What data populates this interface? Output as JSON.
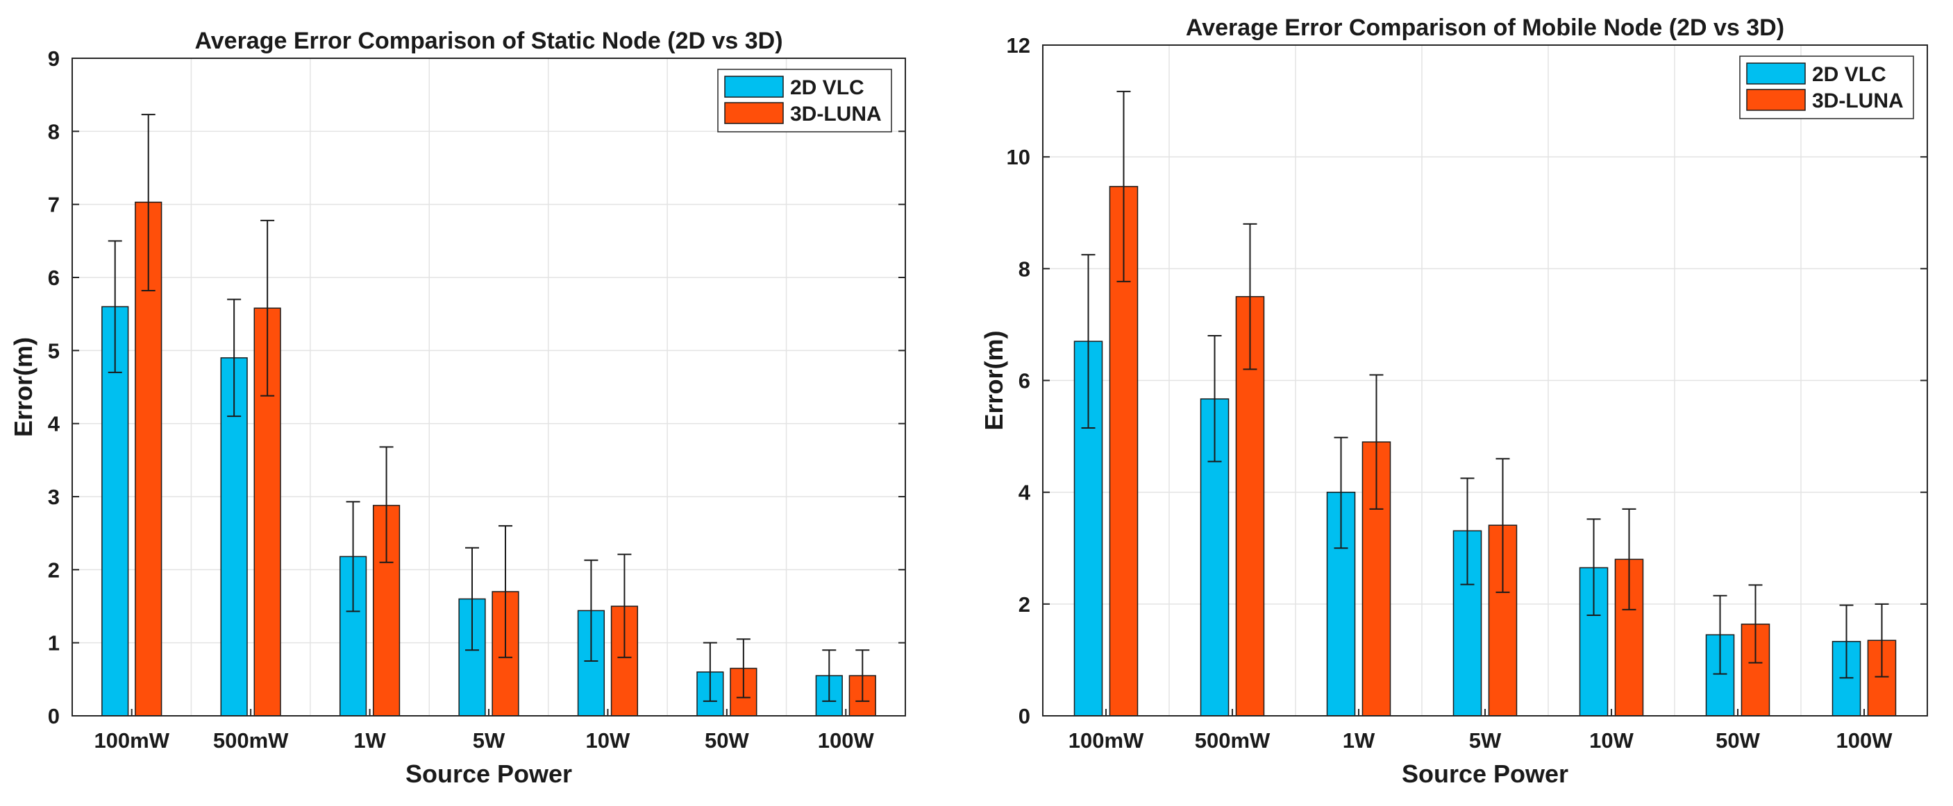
{
  "colors": {
    "series_2d": "#00bff0",
    "series_3d": "#ff4f0a"
  },
  "chart_data": [
    {
      "type": "bar",
      "title": "Average Error Comparison of Static Node (2D vs 3D)",
      "xlabel": "Source Power",
      "ylabel": "Error(m)",
      "ylim": [
        0,
        9
      ],
      "yticks": [
        0,
        1,
        2,
        3,
        4,
        5,
        6,
        7,
        8,
        9
      ],
      "grid": true,
      "legend_position": "top-right",
      "categories": [
        "100mW",
        "500mW",
        "1W",
        "5W",
        "10W",
        "50W",
        "100W"
      ],
      "series": [
        {
          "name": "2D VLC",
          "values": [
            5.6,
            4.9,
            2.18,
            1.6,
            1.44,
            0.6,
            0.55
          ],
          "error_low": [
            4.7,
            4.1,
            1.43,
            0.9,
            0.75,
            0.2,
            0.2
          ],
          "error_high": [
            6.5,
            5.7,
            2.93,
            2.3,
            2.13,
            1.0,
            0.9
          ]
        },
        {
          "name": "3D-LUNA",
          "values": [
            7.03,
            5.58,
            2.88,
            1.7,
            1.5,
            0.65,
            0.55
          ],
          "error_low": [
            5.82,
            4.38,
            2.1,
            0.8,
            0.8,
            0.25,
            0.2
          ],
          "error_high": [
            8.23,
            6.78,
            3.68,
            2.6,
            2.21,
            1.05,
            0.9
          ]
        }
      ]
    },
    {
      "type": "bar",
      "title": "Average Error Comparison of Mobile Node (2D vs 3D)",
      "xlabel": "Source Power",
      "ylabel": "Error(m)",
      "ylim": [
        0,
        12
      ],
      "yticks": [
        0,
        2,
        4,
        6,
        8,
        10,
        12
      ],
      "grid": true,
      "legend_position": "top-right",
      "categories": [
        "100mW",
        "500mW",
        "1W",
        "5W",
        "10W",
        "50W",
        "100W"
      ],
      "series": [
        {
          "name": "2D VLC",
          "values": [
            6.7,
            5.67,
            4.0,
            3.31,
            2.65,
            1.45,
            1.33
          ],
          "error_low": [
            5.15,
            4.55,
            3.0,
            2.35,
            1.8,
            0.75,
            0.68
          ],
          "error_high": [
            8.25,
            6.8,
            4.98,
            4.25,
            3.52,
            2.15,
            1.98
          ]
        },
        {
          "name": "3D-LUNA",
          "values": [
            9.47,
            7.5,
            4.9,
            3.41,
            2.8,
            1.64,
            1.35
          ],
          "error_low": [
            7.77,
            6.2,
            3.7,
            2.21,
            1.9,
            0.95,
            0.7
          ],
          "error_high": [
            11.17,
            8.8,
            6.1,
            4.6,
            3.7,
            2.34,
            2.0
          ]
        }
      ]
    }
  ]
}
